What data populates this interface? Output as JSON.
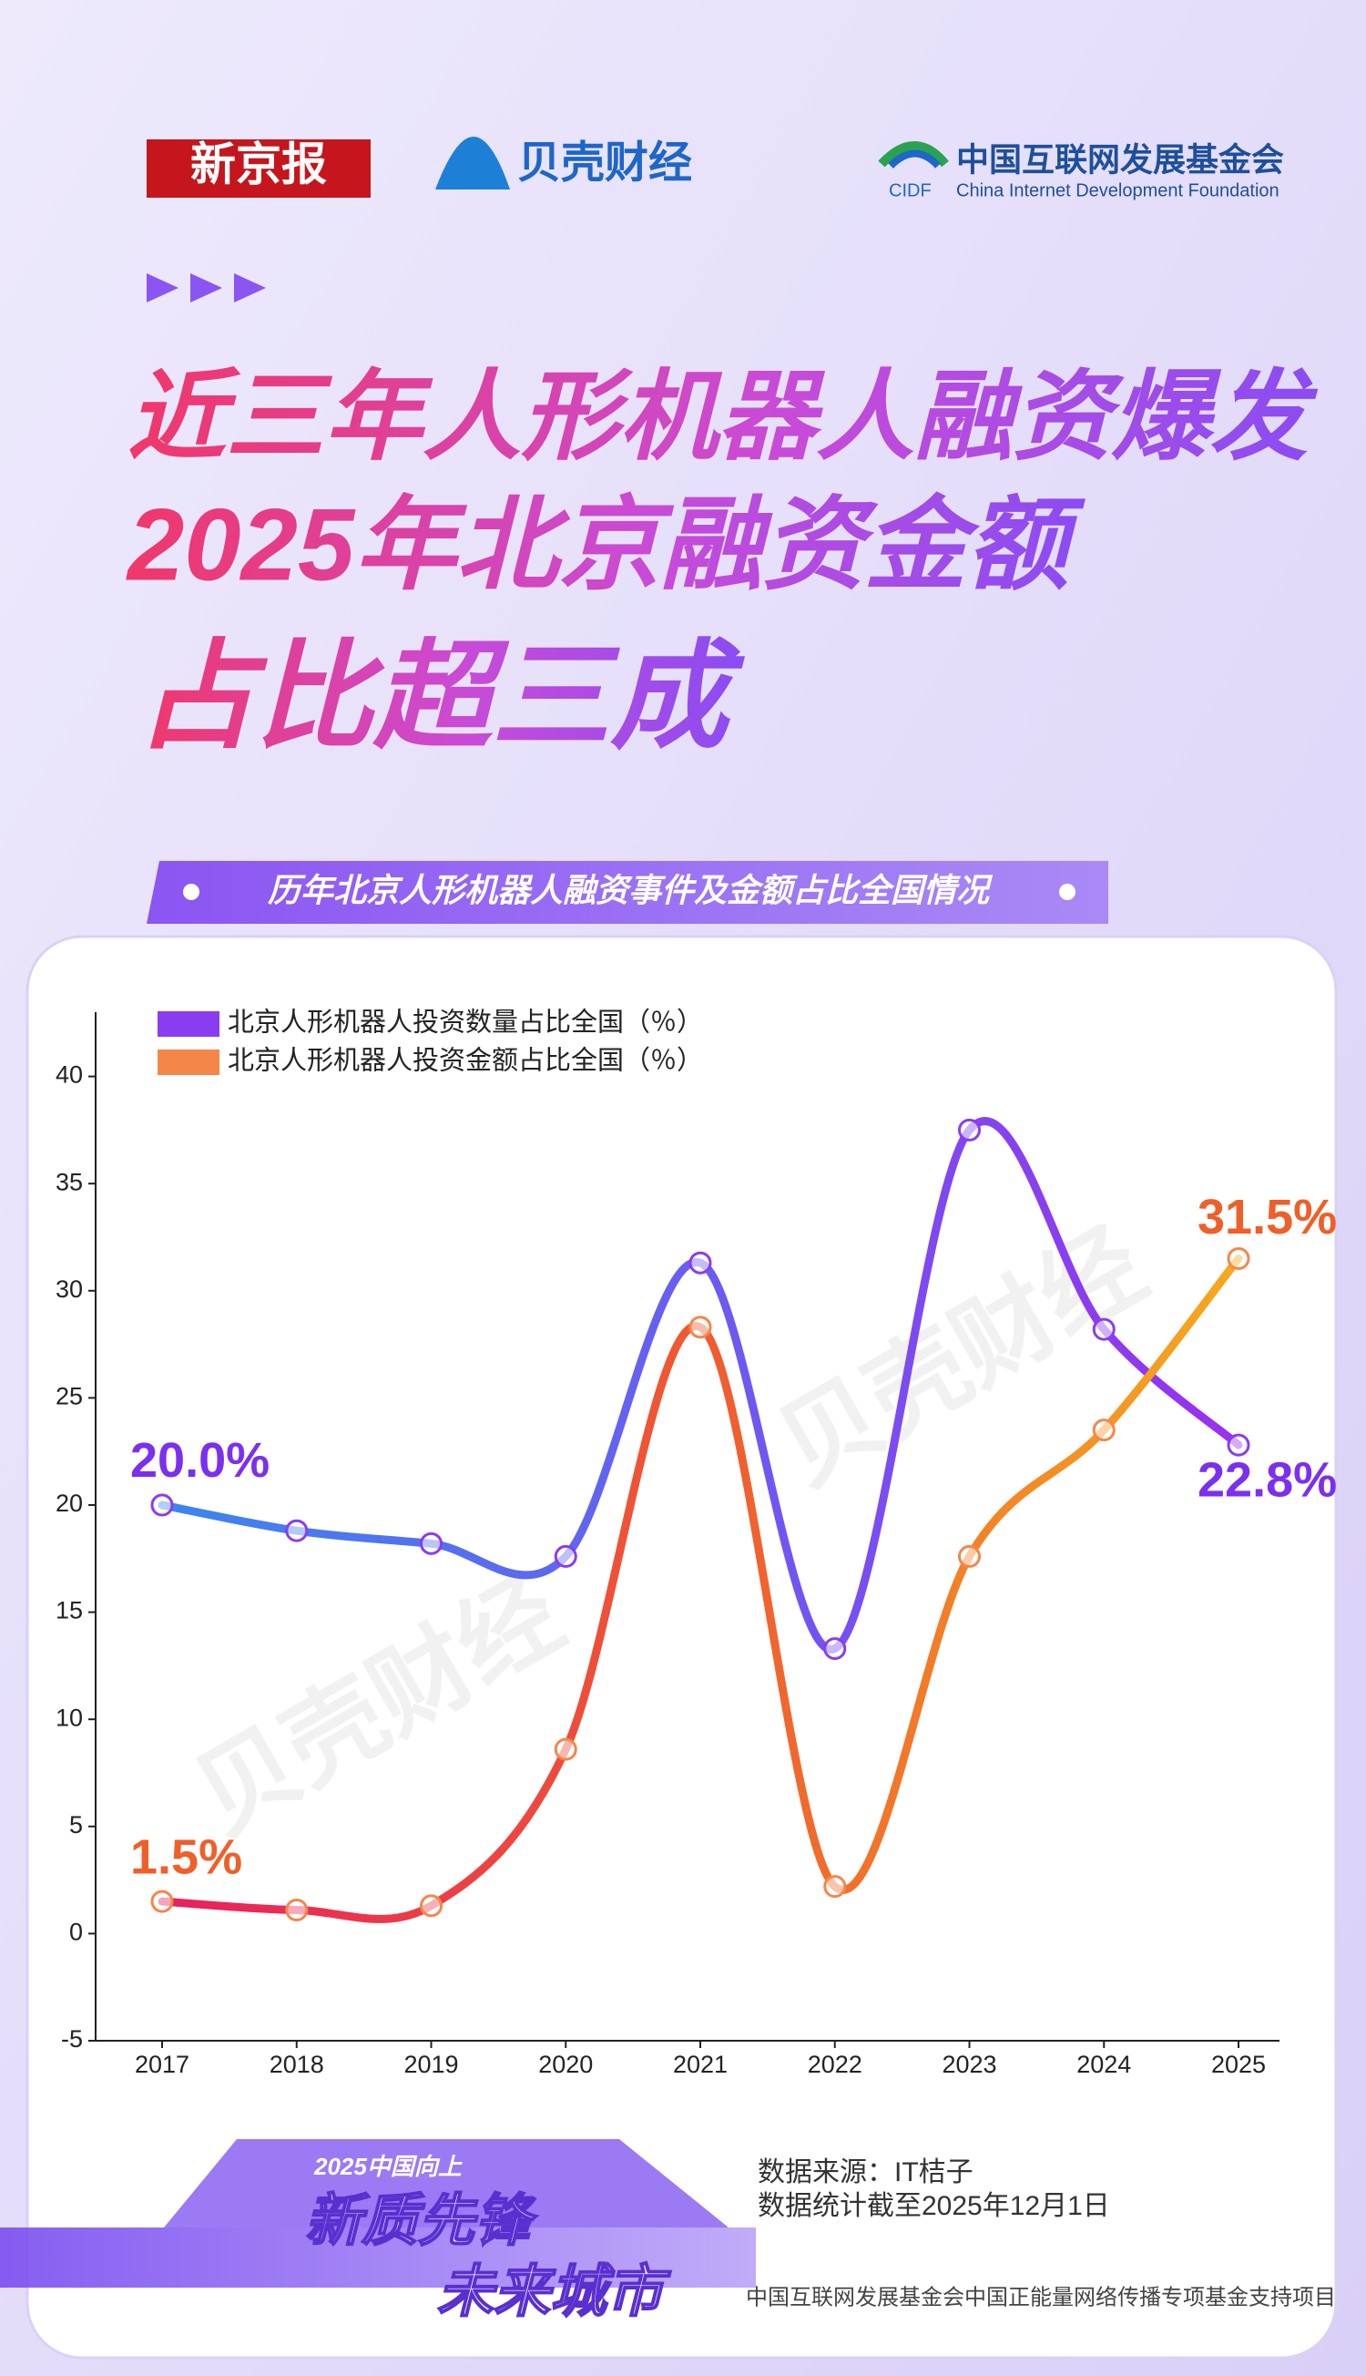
{
  "header": {
    "logo_left": "新京报",
    "logo_mid": "贝壳财经",
    "logo_right_cn": "中国互联网发展基金会",
    "logo_right_abbr": "CIDF",
    "logo_right_en": "China Internet Development Foundation"
  },
  "headline": [
    "近三年人形机器人融资爆发",
    "2025年北京融资金额",
    "占比超三成"
  ],
  "watermark": "贝壳财经",
  "footer": {
    "badge_year": "2025中国向上",
    "badge_line1": "新质先锋",
    "badge_line2": "未来城市",
    "source": "数据来源：IT桔子",
    "cutoff": "数据统计截至2025年12月1日",
    "support": "中国互联网发展基金会中国正能量网络传播专项基金支持项目"
  },
  "chart_data": {
    "type": "line",
    "title": "历年北京人形机器人融资事件及金额占比全国情况",
    "categories": [
      "2017",
      "2018",
      "2019",
      "2020",
      "2021",
      "2022",
      "2023",
      "2024",
      "2025"
    ],
    "series": [
      {
        "name": "北京人形机器人投资数量占比全国（％）",
        "color": "#8a3cf0",
        "values": [
          20.0,
          18.8,
          18.2,
          17.6,
          31.3,
          13.3,
          37.5,
          28.2,
          22.8
        ],
        "value_labels": [
          "20.0%",
          null,
          null,
          null,
          null,
          null,
          null,
          null,
          "22.8%"
        ]
      },
      {
        "name": "北京人形机器人投资金额占比全国（％）",
        "color": "#f5864a",
        "values": [
          1.5,
          1.1,
          1.3,
          8.6,
          28.3,
          2.2,
          17.6,
          23.5,
          31.5
        ],
        "value_labels": [
          "1.5%",
          null,
          null,
          null,
          null,
          null,
          null,
          null,
          "31.5%"
        ]
      }
    ],
    "ylim": [
      -5,
      43
    ],
    "yticks": [
      -5,
      0,
      5,
      10,
      15,
      20,
      25,
      30,
      35,
      40
    ],
    "legend": "top-left"
  }
}
